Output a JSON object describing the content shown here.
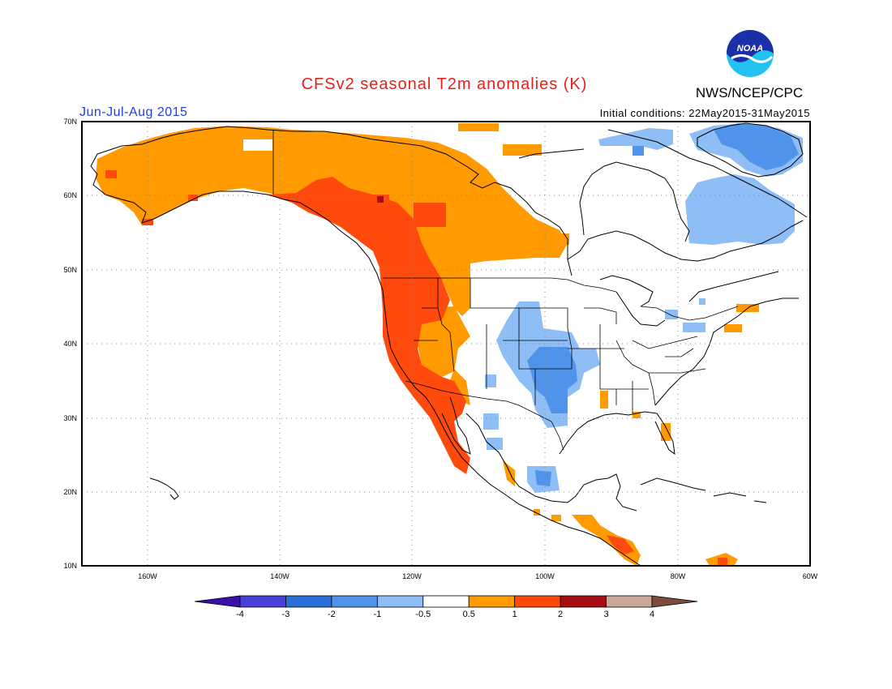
{
  "title": "CFSv2 seasonal T2m anomalies (K)",
  "agency": "NWS/NCEP/CPC",
  "logo_text": "NOAA",
  "period": "Jun-Jul-Aug 2015",
  "initial_conditions": "Initial conditions: 22May2015-31May2015",
  "chart_data": {
    "type": "heatmap",
    "projection": "lat-lon",
    "lon_range": [
      -170,
      -60
    ],
    "lat_range": [
      10,
      70
    ],
    "grid": true,
    "x_ticks": [
      "160W",
      "140W",
      "120W",
      "100W",
      "80W",
      "60W"
    ],
    "y_ticks": [
      "10N",
      "20N",
      "30N",
      "40N",
      "50N",
      "60N",
      "70N"
    ],
    "colorbar": {
      "ticks": [
        "-4",
        "-3",
        "-2",
        "-1",
        "-0.5",
        "0.5",
        "1",
        "2",
        "3",
        "4"
      ],
      "colors": [
        "#3a10a8",
        "#4a3fd6",
        "#2a6ed8",
        "#4f93ea",
        "#8fbdf5",
        "#ffffff",
        "#ff9a00",
        "#fe4a0c",
        "#a50f12",
        "#c9a898",
        "#7b4c3c"
      ]
    },
    "anomaly_regions": [
      {
        "region": "Alaska and Yukon",
        "category": "0.5 to 1"
      },
      {
        "region": "Western Canada interior",
        "category": "0.5 to 1"
      },
      {
        "region": "British Columbia and US West Coast",
        "category": "1 to 2"
      },
      {
        "region": "Baja California",
        "category": "1 to 2"
      },
      {
        "region": "Great Basin",
        "category": "0.5 to 1"
      },
      {
        "region": "Southern Plains (Texas/Oklahoma)",
        "category": "-1 to -2"
      },
      {
        "region": "Central Plains (Kansas/Nebraska)",
        "category": "-0.5 to -1"
      },
      {
        "region": "Labrador / Quebec",
        "category": "-0.5 to -1"
      },
      {
        "region": "Baffin Island",
        "category": "-1 to -2"
      },
      {
        "region": "Central Mexico",
        "category": "-0.5 to -1"
      },
      {
        "region": "Central America",
        "category": "0.5 to 2"
      }
    ]
  }
}
